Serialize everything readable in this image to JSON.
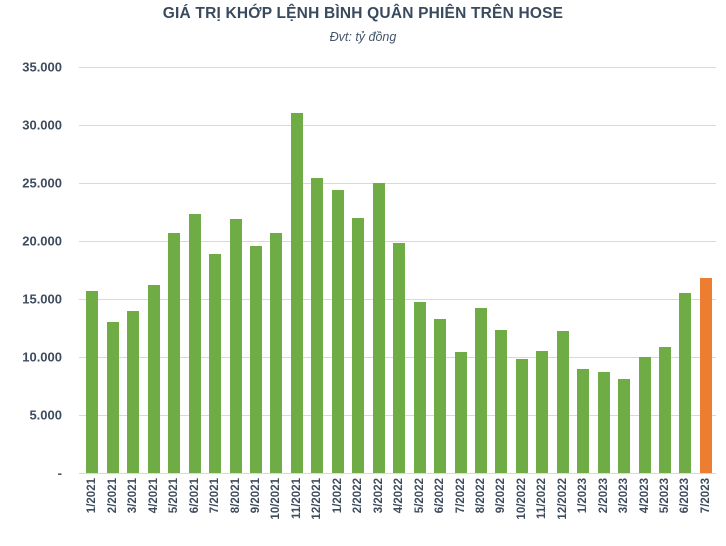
{
  "title": "GIÁ TRỊ KHỚP LỆNH BÌNH QUÂN PHIÊN TRÊN HOSE",
  "subtitle": "Đvt: tỷ đồng",
  "colors": {
    "bar_green": "#6fac46",
    "bar_highlight_orange": "#ed7d31",
    "title_text": "#3a4a5e",
    "axis_text": "#3e4c5e",
    "gridline": "#d9d9d9",
    "background": "#ffffff"
  },
  "y_axis": {
    "tick_labels": [
      "-",
      "5.000",
      "10.000",
      "15.000",
      "20.000",
      "25.000",
      "30.000",
      "35.000"
    ],
    "min": 0,
    "max": 35000,
    "step": 5000
  },
  "chart_data": {
    "type": "bar",
    "title": "GIÁ TRỊ KHỚP LỆNH BÌNH QUÂN PHIÊN TRÊN HOSE",
    "subtitle": "Đvt: tỷ đồng",
    "unit": "tỷ đồng",
    "xlabel": "",
    "ylabel": "",
    "ylim": [
      0,
      35000
    ],
    "grid": true,
    "legend": "none",
    "highlight_index": 30,
    "categories": [
      "1/2021",
      "2/2021",
      "3/2021",
      "4/2021",
      "5/2021",
      "6/2021",
      "7/2021",
      "8/2021",
      "9/2021",
      "10/2021",
      "11/2021",
      "12/2021",
      "1/2022",
      "2/2022",
      "3/2022",
      "4/2022",
      "5/2022",
      "6/2022",
      "7/2022",
      "8/2022",
      "9/2022",
      "10/2022",
      "11/2022",
      "12/2022",
      "1/2023",
      "2/2023",
      "3/2023",
      "4/2023",
      "5/2023",
      "6/2023",
      "7/2023"
    ],
    "values": [
      15700,
      13000,
      14000,
      16200,
      20700,
      22300,
      18900,
      21900,
      19600,
      20700,
      31000,
      25400,
      24400,
      22000,
      25000,
      19800,
      14700,
      13300,
      10400,
      14200,
      12300,
      9800,
      10500,
      12200,
      9000,
      8700,
      8100,
      10000,
      10900,
      15500,
      16800
    ]
  }
}
